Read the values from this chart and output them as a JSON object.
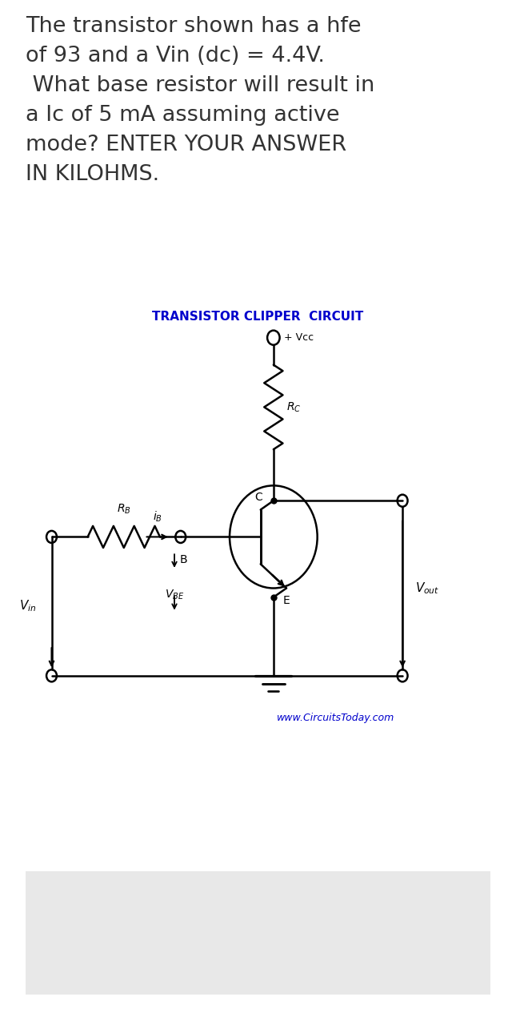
{
  "title_text": "The transistor shown has a hfe\nof 93 and a Vin (dc) = 4.4V.\n What base resistor will result in\na Ic of 5 mA assuming active\nmode? ENTER YOUR ANSWER\nIN KILOHMS.",
  "circuit_title": "TRANSISTOR CLIPPER  CIRCUIT",
  "circuit_title_color": "#0000CC",
  "label_Vcc": "+ Vcc",
  "label_B": "B",
  "label_C": "C",
  "label_E": "E",
  "website": "www.CircuitsToday.com",
  "website_color": "#0000CC",
  "bg_color": "#ffffff",
  "line_color": "#000000",
  "text_color": "#333333",
  "answer_box_color": "#e8e8e8",
  "answer_box_edge": "#cccccc"
}
